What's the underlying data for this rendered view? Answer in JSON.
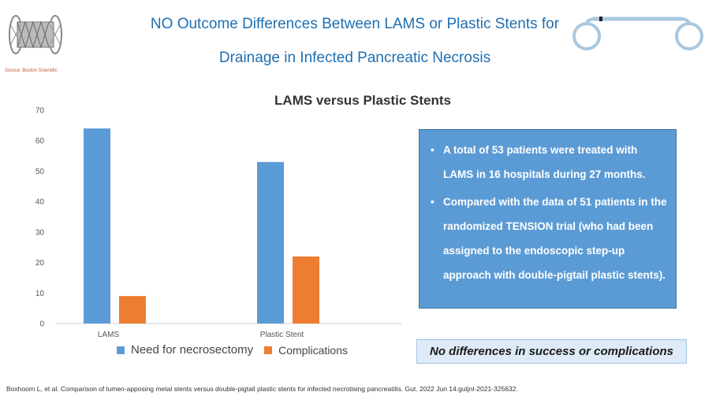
{
  "slide": {
    "title_line1": "NO Outcome Differences Between LAMS or Plastic Stents for",
    "title_line2": "Drainage in Infected Pancreatic Necrosis",
    "image_source": "Source: Boston Scientific",
    "bullets": [
      "A total of 53 patients were treated with LAMS in 16 hospitals during 27 months.",
      "Compared with the data of 51 patients in the randomized TENSION trial (who had been assigned to the endoscopic step-up approach with double-pigtail plastic stents)."
    ],
    "conclusion": "No differences in success or complications",
    "citation": "Boxhoorn L, et al. Comparison of lumen-apposing metal stents versus double-pigtail plastic stents for infected necrotising pancreatitis. Gut. 2022 Jun 14:gutjnl-2021-325632."
  },
  "colors": {
    "title": "#1f6fb2",
    "series1": "#5b9bd5",
    "series2": "#ed7d31",
    "infobox": "#5b9bd5"
  },
  "chart_data": {
    "type": "bar",
    "title": "LAMS versus Plastic Stents",
    "categories": [
      "LAMS",
      "Plastic Stent"
    ],
    "series": [
      {
        "name": "Need for necrosectomy",
        "values": [
          64,
          53
        ]
      },
      {
        "name": "Complications",
        "values": [
          9,
          22
        ]
      }
    ],
    "ylim": [
      0,
      70
    ],
    "yticks": [
      0,
      10,
      20,
      30,
      40,
      50,
      60,
      70
    ],
    "xlabel": "",
    "ylabel": "",
    "legend": "bottom"
  }
}
